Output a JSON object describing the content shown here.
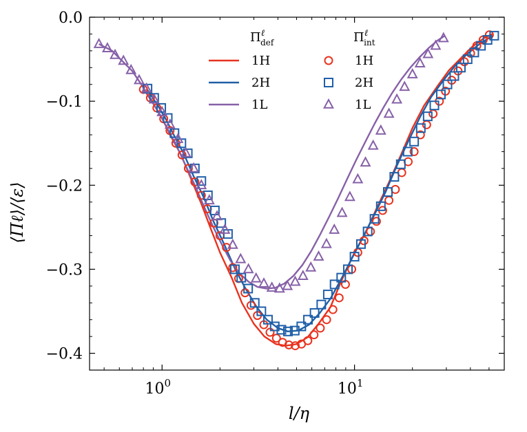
{
  "chart_data": {
    "type": "line",
    "xlabel": "l/η",
    "ylabel": "⟨Πℓ⟩/⟨ε⟩",
    "xscale": "log",
    "xlim": [
      0.42,
      60
    ],
    "ylim": [
      -0.42,
      0.0
    ],
    "x_ticks": [
      {
        "value": 1,
        "base": "10",
        "exp": "0"
      },
      {
        "value": 10,
        "base": "10",
        "exp": "1"
      }
    ],
    "y_ticks": [
      {
        "value": 0.0,
        "label": "0.0"
      },
      {
        "value": -0.1,
        "label": "−0.1"
      },
      {
        "value": -0.2,
        "label": "−0.2"
      },
      {
        "value": -0.3,
        "label": "−0.3"
      },
      {
        "value": -0.4,
        "label": "−0.4"
      }
    ],
    "grid": false,
    "legend": {
      "placement": "top-center",
      "line_header_base": "Π",
      "line_header_sup": "ℓ",
      "line_header_sub": "def",
      "marker_header_base": "Π",
      "marker_header_sup": "ℓ",
      "marker_header_sub": "int"
    },
    "series": [
      {
        "name": "1H",
        "color": "#e8321e",
        "line": {
          "x": [
            0.8,
            0.9,
            1.0,
            1.1,
            1.25,
            1.4,
            1.6,
            1.8,
            2.0,
            2.3,
            2.6,
            3.0,
            3.4,
            3.9,
            4.4,
            5.0,
            5.7,
            6.5,
            7.5,
            8.5,
            10.0,
            11.5,
            13.0,
            15.0,
            17.5,
            20.0,
            23.0,
            27.0,
            31.0,
            36.0,
            41.0,
            47.0,
            52.0
          ],
          "y": [
            -0.085,
            -0.103,
            -0.12,
            -0.14,
            -0.163,
            -0.19,
            -0.222,
            -0.253,
            -0.28,
            -0.31,
            -0.34,
            -0.365,
            -0.38,
            -0.389,
            -0.391,
            -0.389,
            -0.381,
            -0.365,
            -0.345,
            -0.315,
            -0.28,
            -0.255,
            -0.228,
            -0.198,
            -0.163,
            -0.132,
            -0.105,
            -0.082,
            -0.063,
            -0.048,
            -0.035,
            -0.025,
            -0.02
          ]
        },
        "markers": {
          "shape": "circle",
          "x": [
            0.8,
            0.87,
            0.94,
            1.02,
            1.1,
            1.18,
            1.27,
            1.37,
            1.48,
            1.6,
            1.72,
            1.86,
            2.0,
            2.16,
            2.33,
            2.5,
            2.7,
            2.9,
            3.13,
            3.38,
            3.64,
            3.93,
            4.23,
            4.56,
            4.92,
            5.3,
            5.72,
            6.16,
            6.64,
            7.16,
            7.72,
            8.32,
            8.97,
            9.67,
            10.4,
            11.2,
            12.1,
            13.0,
            14.0,
            15.1,
            16.3,
            17.6,
            19.0,
            20.4,
            22.0,
            23.7,
            25.6,
            27.6,
            29.7,
            32.0,
            34.5,
            37.2,
            40.1,
            43.2,
            46.6,
            50.2
          ],
          "y": [
            -0.086,
            -0.096,
            -0.108,
            -0.121,
            -0.135,
            -0.15,
            -0.164,
            -0.18,
            -0.196,
            -0.212,
            -0.228,
            -0.245,
            -0.26,
            -0.274,
            -0.298,
            -0.311,
            -0.328,
            -0.343,
            -0.355,
            -0.366,
            -0.375,
            -0.382,
            -0.387,
            -0.39,
            -0.391,
            -0.389,
            -0.385,
            -0.378,
            -0.37,
            -0.36,
            -0.348,
            -0.334,
            -0.318,
            -0.3,
            -0.28,
            -0.266,
            -0.255,
            -0.243,
            -0.23,
            -0.218,
            -0.205,
            -0.185,
            -0.172,
            -0.16,
            -0.14,
            -0.128,
            -0.115,
            -0.1,
            -0.088,
            -0.075,
            -0.064,
            -0.053,
            -0.043,
            -0.034,
            -0.027,
            -0.021
          ]
        }
      },
      {
        "name": "2H",
        "color": "#1f5fa8",
        "line": {
          "x": [
            0.83,
            0.95,
            1.05,
            1.15,
            1.3,
            1.45,
            1.65,
            1.85,
            2.1,
            2.4,
            2.7,
            3.1,
            3.5,
            4.0,
            4.5,
            5.1,
            5.8,
            6.6,
            7.5,
            8.6,
            9.8,
            11.0,
            12.5,
            14.5,
            16.5,
            19.0,
            22.0,
            25.0,
            29.0,
            33.0,
            38.0,
            44.0,
            52.0
          ],
          "y": [
            -0.085,
            -0.105,
            -0.122,
            -0.14,
            -0.163,
            -0.188,
            -0.215,
            -0.243,
            -0.27,
            -0.3,
            -0.322,
            -0.345,
            -0.36,
            -0.37,
            -0.374,
            -0.373,
            -0.366,
            -0.352,
            -0.335,
            -0.31,
            -0.285,
            -0.263,
            -0.238,
            -0.208,
            -0.178,
            -0.148,
            -0.118,
            -0.095,
            -0.075,
            -0.059,
            -0.045,
            -0.033,
            -0.022
          ]
        },
        "markers": {
          "shape": "square",
          "x": [
            0.84,
            0.91,
            0.99,
            1.07,
            1.16,
            1.26,
            1.36,
            1.48,
            1.6,
            1.73,
            1.88,
            2.03,
            2.2,
            2.39,
            2.58,
            2.8,
            3.03,
            3.28,
            3.55,
            3.85,
            4.17,
            4.51,
            4.89,
            5.29,
            5.73,
            6.2,
            6.72,
            7.27,
            7.88,
            8.53,
            9.24,
            10.0,
            10.8,
            11.7,
            12.7,
            13.7,
            14.9,
            16.1,
            17.4,
            18.9,
            20.4,
            22.1,
            24.0,
            26.0,
            28.1,
            30.4,
            33.0,
            35.7,
            38.7,
            41.9,
            45.4,
            49.1,
            53.2
          ],
          "y": [
            -0.085,
            -0.096,
            -0.108,
            -0.12,
            -0.138,
            -0.15,
            -0.162,
            -0.18,
            -0.195,
            -0.212,
            -0.23,
            -0.245,
            -0.258,
            -0.3,
            -0.31,
            -0.323,
            -0.34,
            -0.35,
            -0.36,
            -0.368,
            -0.372,
            -0.374,
            -0.373,
            -0.368,
            -0.36,
            -0.352,
            -0.342,
            -0.33,
            -0.318,
            -0.31,
            -0.3,
            -0.285,
            -0.27,
            -0.255,
            -0.24,
            -0.225,
            -0.208,
            -0.19,
            -0.175,
            -0.16,
            -0.148,
            -0.132,
            -0.118,
            -0.105,
            -0.092,
            -0.08,
            -0.07,
            -0.06,
            -0.05,
            -0.042,
            -0.034,
            -0.027,
            -0.022
          ]
        }
      },
      {
        "name": "1L",
        "color": "#8660a8",
        "line": {
          "x": [
            0.47,
            0.55,
            0.62,
            0.7,
            0.78,
            0.87,
            0.97,
            1.08,
            1.2,
            1.33,
            1.48,
            1.65,
            1.83,
            2.04,
            2.27,
            2.53,
            2.82,
            3.13,
            3.49,
            3.88,
            4.32,
            4.81,
            5.36,
            5.97,
            6.65,
            7.4,
            8.24,
            9.18,
            10.2,
            11.4,
            12.7,
            14.1,
            15.7,
            17.5,
            19.5,
            21.7,
            24.2,
            26.9,
            29.5
          ],
          "y": [
            -0.032,
            -0.04,
            -0.052,
            -0.064,
            -0.08,
            -0.097,
            -0.115,
            -0.135,
            -0.155,
            -0.177,
            -0.2,
            -0.225,
            -0.248,
            -0.27,
            -0.29,
            -0.305,
            -0.315,
            -0.321,
            -0.323,
            -0.322,
            -0.317,
            -0.308,
            -0.295,
            -0.278,
            -0.258,
            -0.237,
            -0.215,
            -0.192,
            -0.17,
            -0.148,
            -0.127,
            -0.108,
            -0.09,
            -0.074,
            -0.06,
            -0.048,
            -0.037,
            -0.028,
            -0.022
          ]
        },
        "markers": {
          "shape": "triangle",
          "x": [
            0.47,
            0.52,
            0.57,
            0.63,
            0.69,
            0.76,
            0.83,
            0.91,
            1.0,
            1.1,
            1.21,
            1.33,
            1.46,
            1.6,
            1.76,
            1.93,
            2.12,
            2.33,
            2.56,
            2.81,
            3.08,
            3.38,
            3.72,
            4.08,
            4.48,
            4.92,
            5.4,
            5.93,
            6.51,
            7.15,
            7.85,
            8.62,
            9.46,
            10.4,
            11.4,
            12.5,
            13.7,
            15.1,
            16.6,
            18.2,
            20.0,
            21.9,
            24.1,
            26.4,
            29.0
          ],
          "y": [
            -0.032,
            -0.037,
            -0.045,
            -0.052,
            -0.063,
            -0.075,
            -0.085,
            -0.098,
            -0.113,
            -0.128,
            -0.145,
            -0.162,
            -0.18,
            -0.2,
            -0.218,
            -0.237,
            -0.253,
            -0.271,
            -0.288,
            -0.3,
            -0.311,
            -0.317,
            -0.322,
            -0.323,
            -0.32,
            -0.315,
            -0.308,
            -0.298,
            -0.285,
            -0.27,
            -0.253,
            -0.233,
            -0.214,
            -0.193,
            -0.173,
            -0.153,
            -0.135,
            -0.115,
            -0.098,
            -0.083,
            -0.068,
            -0.055,
            -0.044,
            -0.034,
            -0.025
          ]
        }
      }
    ]
  }
}
